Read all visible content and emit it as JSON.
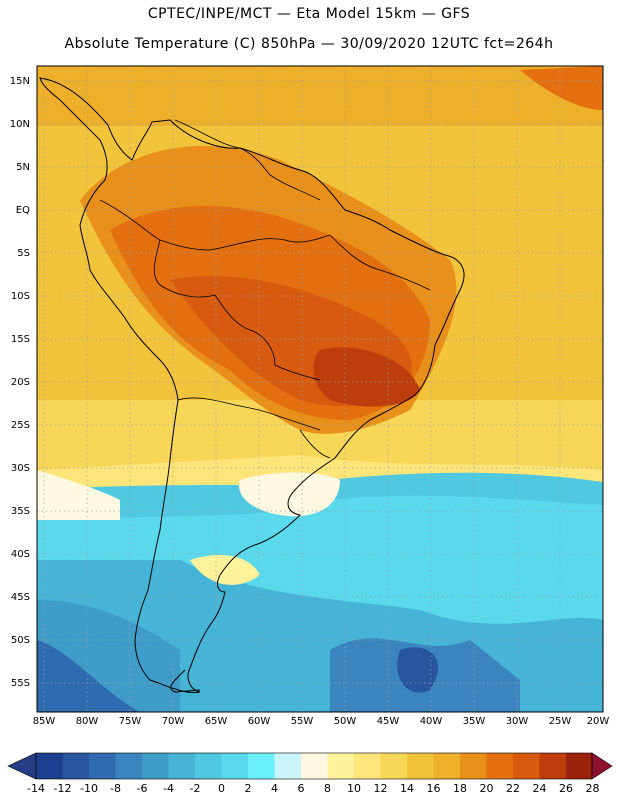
{
  "header": {
    "line1": "CPTEC/INPE/MCT —  Eta Model 15km — GFS",
    "line2": "Absolute Temperature (C) 850hPa — 30/09/2020 12UTC fct=264h"
  },
  "map": {
    "lat_labels": [
      "15N",
      "10N",
      "5N",
      "EQ",
      "5S",
      "10S",
      "15S",
      "20S",
      "25S",
      "30S",
      "35S",
      "40S",
      "45S",
      "50S",
      "55S"
    ],
    "lon_labels": [
      "85W",
      "80W",
      "75W",
      "70W",
      "65W",
      "60W",
      "55W",
      "50W",
      "45W",
      "40W",
      "35W",
      "30W",
      "25W",
      "20W"
    ],
    "region": "South America",
    "variable": "Absolute Temperature (C) 850hPa"
  },
  "colorbar": {
    "labels": [
      "-14",
      "-12",
      "-10",
      "-8",
      "-6",
      "-4",
      "-2",
      "0",
      "2",
      "4",
      "6",
      "8",
      "10",
      "12",
      "14",
      "16",
      "18",
      "20",
      "22",
      "24",
      "26",
      "28"
    ],
    "colors": [
      "#1c3f8f",
      "#27559e",
      "#2f6bb0",
      "#3a85bf",
      "#3f9cc8",
      "#46b4d6",
      "#50c8e0",
      "#5ad8ec",
      "#6af0fa",
      "#caf4fc",
      "#fff8e0",
      "#fff29a",
      "#fde57a",
      "#f8d657",
      "#f2c43c",
      "#eeb02a",
      "#e9901a",
      "#e36f0f",
      "#d85a0e",
      "#bd3d0c",
      "#9c230b",
      "#7a1a0f"
    ],
    "under_color": "#273c86",
    "over_color": "#8c1230"
  }
}
